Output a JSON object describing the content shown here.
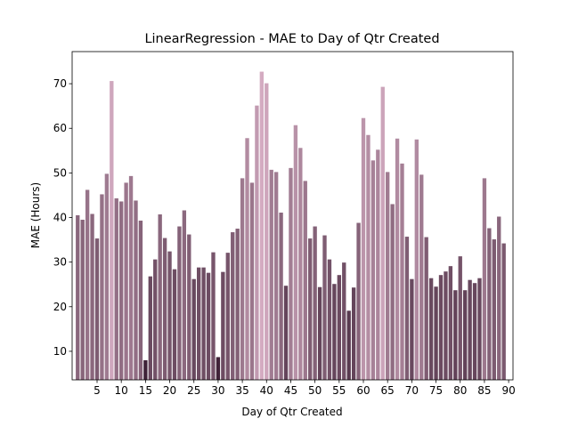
{
  "chart_data": {
    "type": "bar",
    "title": "LinearRegression - MAE to Day of Qtr Created",
    "x_label": "Day of Qtr Created",
    "y_label": "MAE (Hours)",
    "x": [
      1,
      2,
      3,
      4,
      5,
      6,
      7,
      8,
      9,
      10,
      11,
      12,
      13,
      14,
      15,
      16,
      17,
      18,
      19,
      20,
      21,
      22,
      23,
      24,
      25,
      26,
      27,
      28,
      29,
      30,
      31,
      32,
      33,
      34,
      35,
      36,
      37,
      38,
      39,
      40,
      41,
      42,
      43,
      44,
      45,
      46,
      47,
      48,
      49,
      50,
      51,
      52,
      53,
      54,
      55,
      56,
      57,
      58,
      59,
      60,
      61,
      62,
      63,
      64,
      65,
      66,
      67,
      68,
      69,
      70,
      71,
      72,
      73,
      74,
      75,
      76,
      77,
      78,
      79,
      80,
      81,
      82,
      83,
      84,
      85,
      86,
      87,
      88,
      89
    ],
    "values": [
      40.5,
      39.5,
      46.2,
      40.8,
      35.3,
      45.2,
      49.8,
      70.6,
      44.3,
      43.6,
      47.8,
      49.3,
      43.8,
      39.3,
      8.0,
      26.8,
      30.6,
      40.7,
      35.4,
      32.4,
      28.4,
      38.0,
      41.6,
      36.2,
      26.2,
      28.8,
      28.8,
      27.6,
      32.2,
      8.7,
      27.8,
      32.1,
      36.7,
      37.5,
      48.8,
      57.8,
      47.8,
      65.1,
      72.7,
      70.1,
      50.7,
      50.2,
      41.1,
      24.7,
      51.1,
      60.7,
      55.6,
      48.2,
      35.3,
      38.0,
      24.4,
      36.0,
      30.6,
      25.1,
      27.1,
      29.9,
      19.1,
      24.3,
      38.8,
      62.3,
      58.5,
      52.8,
      55.2,
      69.3,
      50.2,
      43.0,
      57.7,
      52.1,
      35.7,
      26.2,
      57.5,
      49.6,
      35.6,
      26.4,
      24.5,
      27.1,
      27.9,
      29.1,
      23.7,
      31.3,
      23.7,
      26.0,
      25.3,
      26.4,
      48.8,
      37.6,
      35.1,
      40.2,
      34.2
    ],
    "color_low": "#3f2238",
    "color_high": "#d4abc1",
    "xlim": [
      -0.15,
      90.9
    ],
    "ylim": [
      3.6,
      77.2
    ],
    "xticks": [
      5,
      10,
      15,
      20,
      25,
      30,
      35,
      40,
      45,
      50,
      55,
      60,
      65,
      70,
      75,
      80,
      85,
      90
    ],
    "yticks": [
      10,
      20,
      30,
      40,
      50,
      60,
      70
    ]
  }
}
